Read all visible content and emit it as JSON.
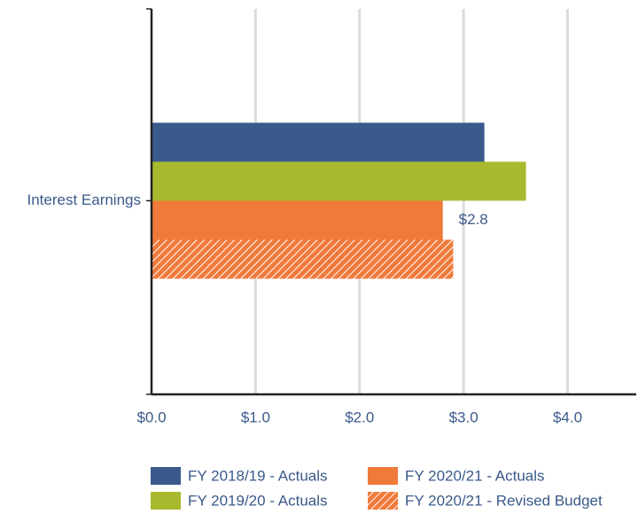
{
  "chart_data": {
    "type": "bar",
    "orientation": "horizontal",
    "categories": [
      "Interest Earnings"
    ],
    "series": [
      {
        "name": "FY 2018/19 - Actuals",
        "color": "#3a5a8c",
        "values": [
          3.2
        ]
      },
      {
        "name": "FY 2019/20 - Actuals",
        "color": "#a8b92d",
        "values": [
          3.6
        ]
      },
      {
        "name": "FY 2020/21 - Actuals",
        "color": "#f07a3a",
        "values": [
          2.8
        ],
        "value_labels": [
          "$2.8"
        ]
      },
      {
        "name": "FY 2020/21 - Revised Budget",
        "color": "#f07a3a",
        "hatch": true,
        "values": [
          2.9
        ]
      }
    ],
    "xlim": [
      0,
      4.66
    ],
    "xticks": [
      {
        "value": 0,
        "label": "$0.0"
      },
      {
        "value": 1,
        "label": "$1.0"
      },
      {
        "value": 2,
        "label": "$2.0"
      },
      {
        "value": 3,
        "label": "$3.0"
      },
      {
        "value": 4,
        "label": "$4.0"
      }
    ],
    "grid": true,
    "legend": "bottom"
  }
}
